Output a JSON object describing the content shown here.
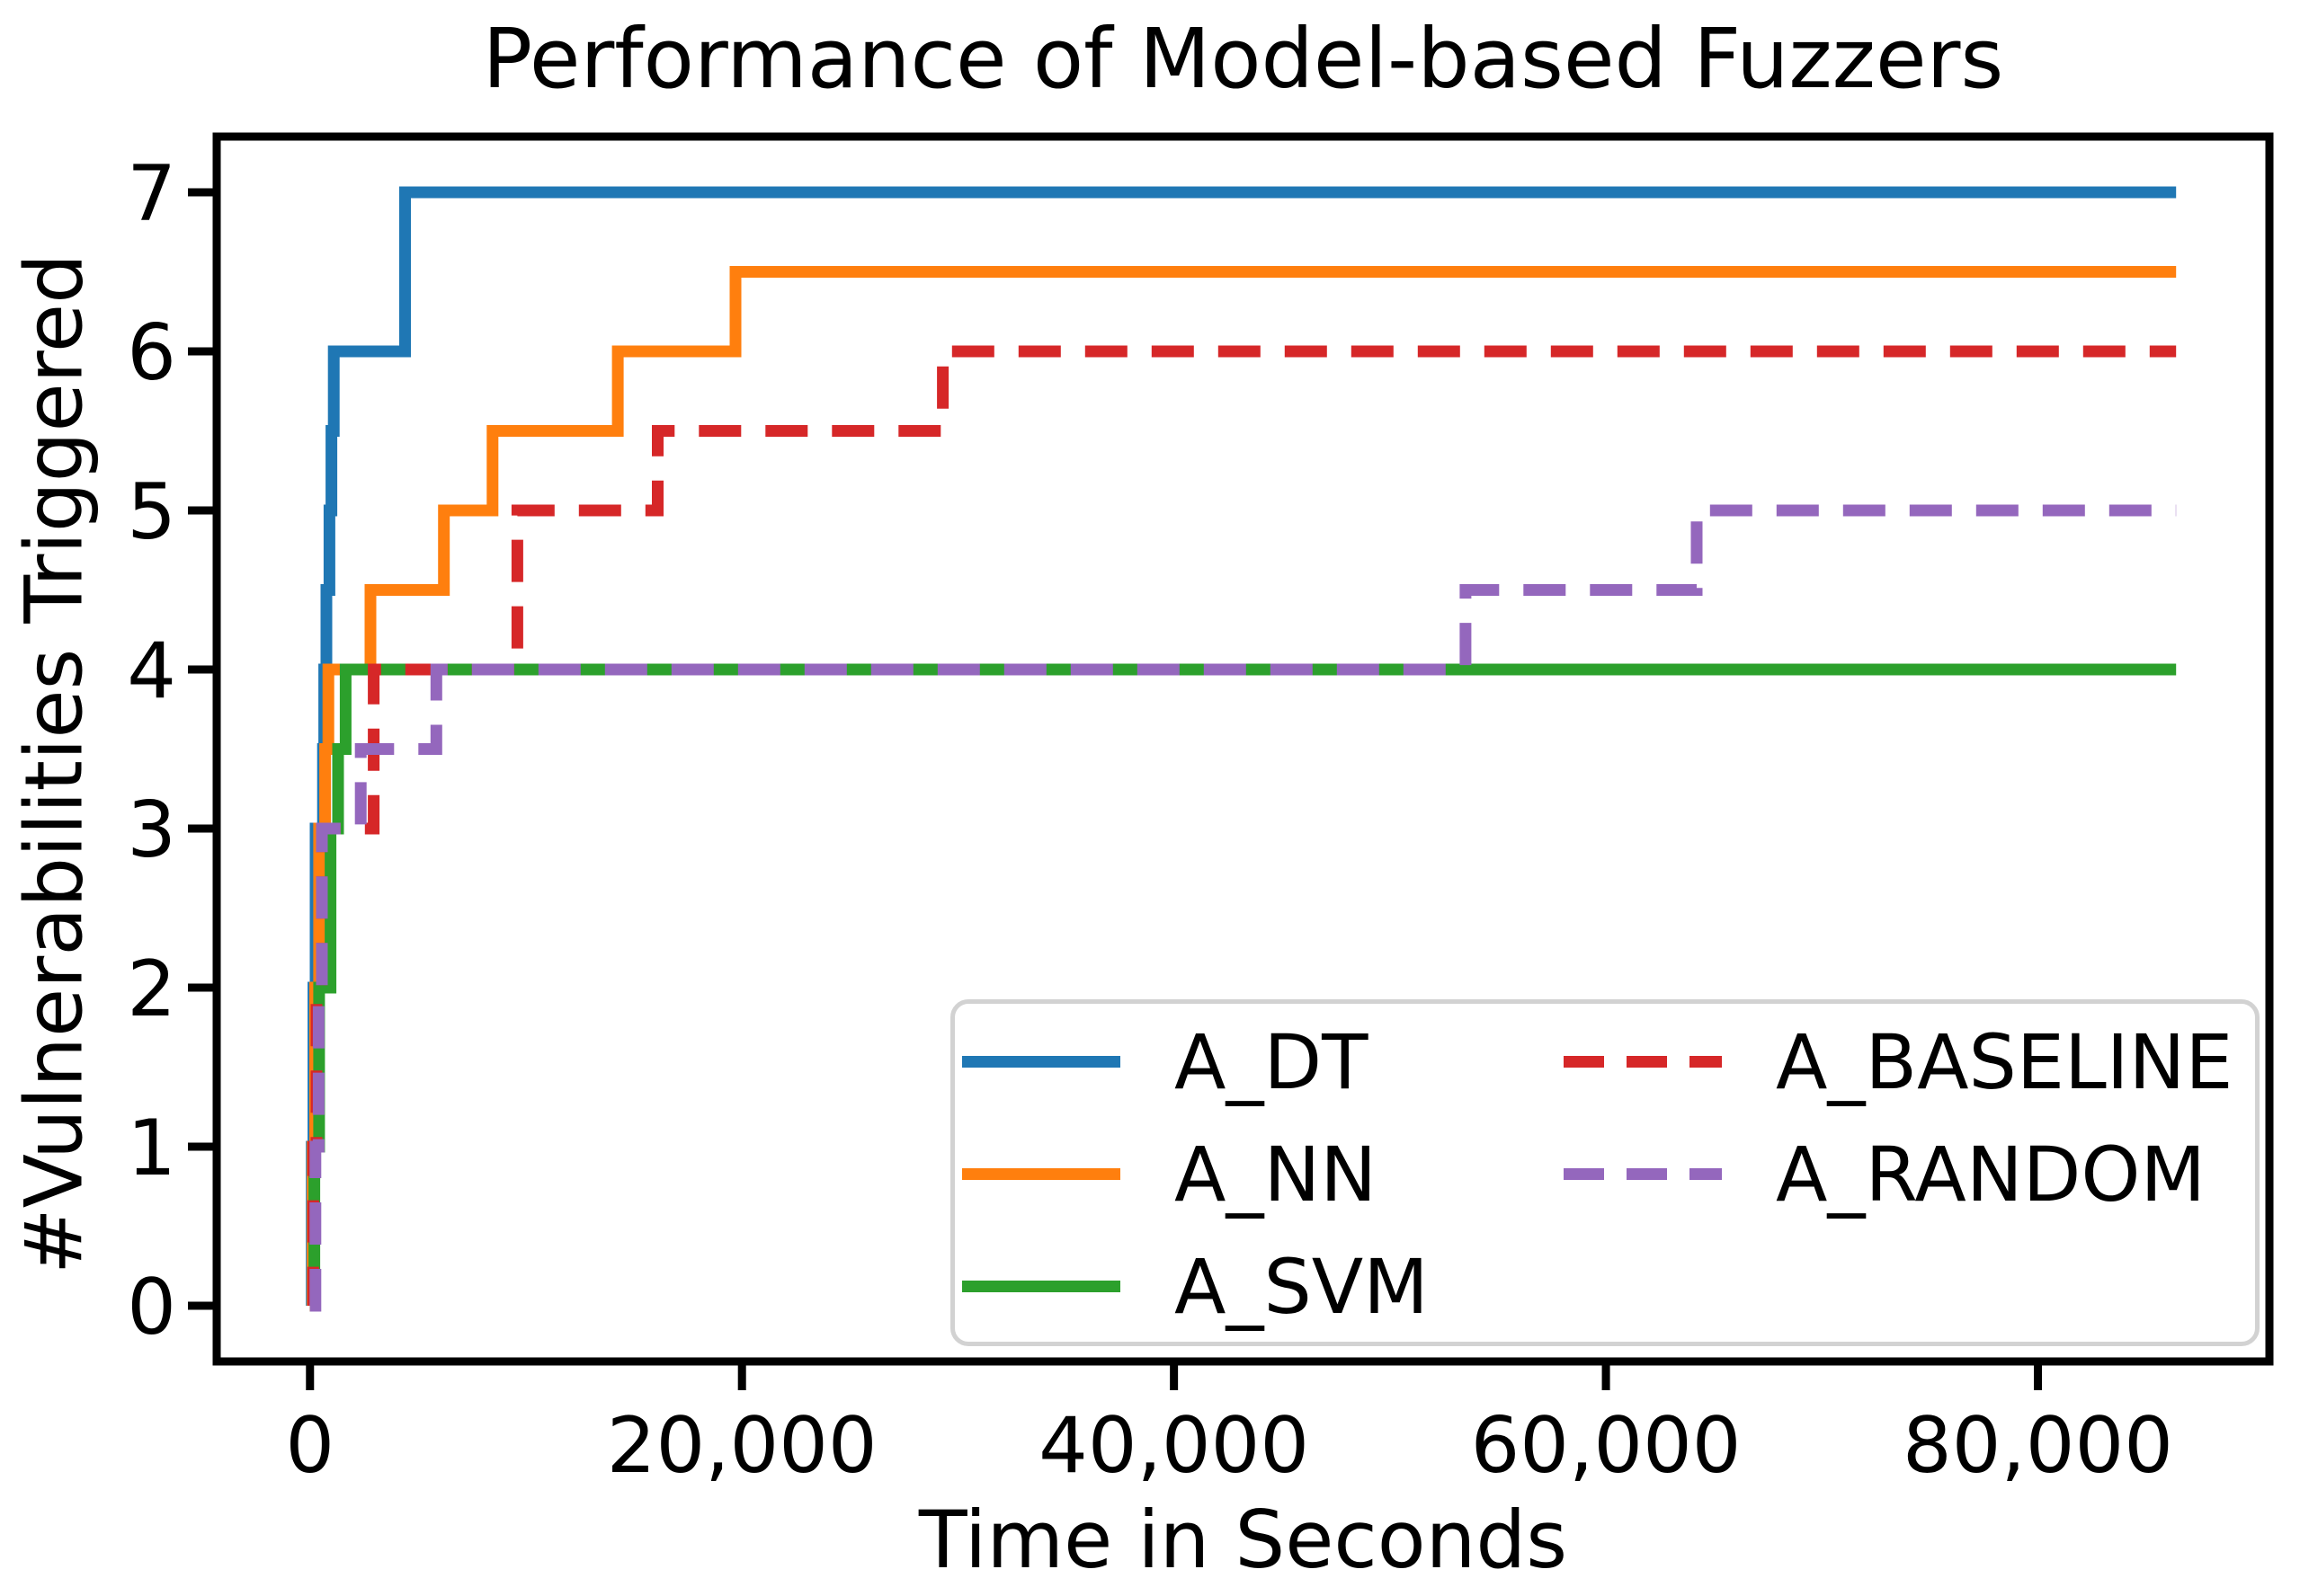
{
  "chart_data": {
    "type": "line",
    "subtype": "step-post",
    "title": "Performance of Model-based Fuzzers",
    "xlabel": "Time in Seconds",
    "ylabel": "#Vulnerabilities Triggered",
    "grid": false,
    "xlim": [
      -4320,
      90720
    ],
    "ylim": [
      -0.35,
      7.35
    ],
    "x_ticks": [
      {
        "value": 0,
        "label": "0"
      },
      {
        "value": 20000,
        "label": "20,000"
      },
      {
        "value": 40000,
        "label": "40,000"
      },
      {
        "value": 60000,
        "label": "60,000"
      },
      {
        "value": 80000,
        "label": "80,000"
      }
    ],
    "y_ticks": [
      {
        "value": 0,
        "label": "0"
      },
      {
        "value": 1,
        "label": "1"
      },
      {
        "value": 2,
        "label": "2"
      },
      {
        "value": 3,
        "label": "3"
      },
      {
        "value": 4,
        "label": "4"
      },
      {
        "value": 5,
        "label": "5"
      },
      {
        "value": 6,
        "label": "6"
      },
      {
        "value": 7,
        "label": "7"
      }
    ],
    "legend_position": "lower right",
    "legend_border_color": "#d2d2d2",
    "series": [
      {
        "name": "A_DT",
        "color": "#1f77b4",
        "style": "solid",
        "points": [
          [
            0,
            0
          ],
          [
            80,
            1
          ],
          [
            160,
            2
          ],
          [
            260,
            3
          ],
          [
            600,
            3.5
          ],
          [
            660,
            4
          ],
          [
            760,
            4.5
          ],
          [
            900,
            5
          ],
          [
            990,
            5.5
          ],
          [
            1100,
            6
          ],
          [
            4400,
            7
          ],
          [
            86400,
            7
          ]
        ]
      },
      {
        "name": "A_NN",
        "color": "#ff7f0e",
        "style": "solid",
        "points": [
          [
            0,
            0
          ],
          [
            120,
            1
          ],
          [
            240,
            2
          ],
          [
            420,
            3
          ],
          [
            700,
            3.5
          ],
          [
            850,
            4
          ],
          [
            2800,
            4.5
          ],
          [
            6200,
            5
          ],
          [
            8450,
            5.5
          ],
          [
            14250,
            6
          ],
          [
            19700,
            6.5
          ],
          [
            86400,
            6.5
          ]
        ]
      },
      {
        "name": "A_SVM",
        "color": "#2ca02c",
        "style": "solid",
        "points": [
          [
            0,
            0
          ],
          [
            200,
            1
          ],
          [
            420,
            2
          ],
          [
            950,
            3
          ],
          [
            1300,
            3.5
          ],
          [
            1650,
            4
          ],
          [
            86400,
            4
          ]
        ]
      },
      {
        "name": "A_BASELINE",
        "color": "#d62728",
        "style": "dashed",
        "points": [
          [
            0,
            0
          ],
          [
            150,
            1
          ],
          [
            300,
            2
          ],
          [
            550,
            3
          ],
          [
            2950,
            4
          ],
          [
            9600,
            5
          ],
          [
            16100,
            5.5
          ],
          [
            29300,
            6
          ],
          [
            86400,
            6
          ]
        ]
      },
      {
        "name": "A_RANDOM",
        "color": "#9467bd",
        "style": "dashed",
        "points": [
          [
            0,
            0
          ],
          [
            250,
            1
          ],
          [
            400,
            2
          ],
          [
            550,
            3
          ],
          [
            2350,
            3.5
          ],
          [
            5850,
            4
          ],
          [
            53500,
            4.5
          ],
          [
            64200,
            5
          ],
          [
            86400,
            5
          ]
        ]
      }
    ]
  }
}
